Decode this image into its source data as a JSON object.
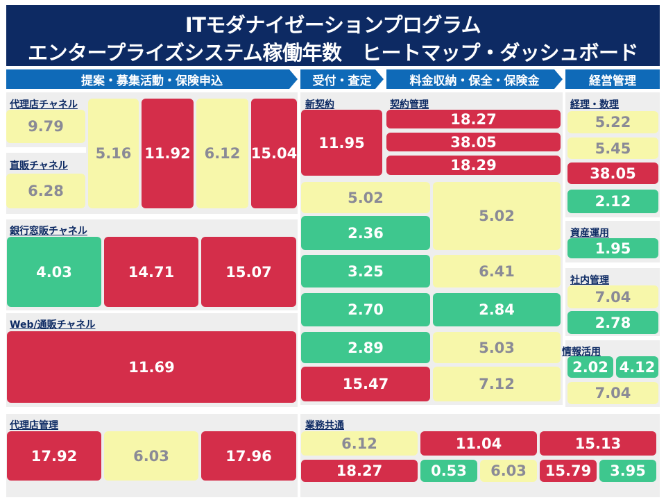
{
  "title": {
    "line1": "ITモダナイゼーションプログラム",
    "line2": "エンタープライズシステム稼働年数　ヒートマップ・ダッシュボード"
  },
  "colors": {
    "red": "#d42e4a",
    "yellow": "#f7f7aa",
    "green": "#3ec78e",
    "header_bg": "#0d2a63",
    "stage_bg": "#0f6ab8"
  },
  "stages": [
    {
      "label": "提案・募集活動・保険申込"
    },
    {
      "label": "受付・査定"
    },
    {
      "label": "料金収納・保全・保険金"
    },
    {
      "label": "経営管理"
    }
  ],
  "groups": {
    "dairiten_channel": {
      "label": "代理店チャネル"
    },
    "chokuhan_channel": {
      "label": "直販チャネル"
    },
    "ginko_channel": {
      "label": "銀行窓販チャネル"
    },
    "web_channel": {
      "label": "Web/通販チャネル"
    },
    "dairiten_kanri": {
      "label": "代理店管理"
    },
    "shinkeiyaku": {
      "label": "新契約"
    },
    "keiyaku_kanri": {
      "label": "契約管理"
    },
    "gyomu_kyotsu": {
      "label": "業務共通"
    },
    "keiri_suri": {
      "label": "経理・数理"
    },
    "shisan_unyo": {
      "label": "資産運用"
    },
    "shanai_kanri": {
      "label": "社内管理"
    },
    "joho_katsuyo": {
      "label": "情報活用"
    }
  },
  "cells": [
    {
      "value": "9.79",
      "status": "yellow"
    },
    {
      "value": "6.28",
      "status": "yellow"
    },
    {
      "value": "5.16",
      "status": "yellow"
    },
    {
      "value": "11.92",
      "status": "red"
    },
    {
      "value": "6.12",
      "status": "yellow"
    },
    {
      "value": "15.04",
      "status": "red"
    },
    {
      "value": "4.03",
      "status": "green"
    },
    {
      "value": "14.71",
      "status": "red"
    },
    {
      "value": "15.07",
      "status": "red"
    },
    {
      "value": "11.69",
      "status": "red"
    },
    {
      "value": "17.92",
      "status": "red"
    },
    {
      "value": "6.03",
      "status": "yellow"
    },
    {
      "value": "17.96",
      "status": "red"
    },
    {
      "value": "11.95",
      "status": "red"
    },
    {
      "value": "18.27",
      "status": "red"
    },
    {
      "value": "38.05",
      "status": "red"
    },
    {
      "value": "18.29",
      "status": "red"
    },
    {
      "value": "5.02",
      "status": "yellow"
    },
    {
      "value": "5.02",
      "status": "yellow"
    },
    {
      "value": "2.36",
      "status": "green"
    },
    {
      "value": "3.25",
      "status": "green"
    },
    {
      "value": "6.41",
      "status": "yellow"
    },
    {
      "value": "2.70",
      "status": "green"
    },
    {
      "value": "2.84",
      "status": "green"
    },
    {
      "value": "2.89",
      "status": "green"
    },
    {
      "value": "5.03",
      "status": "yellow"
    },
    {
      "value": "15.47",
      "status": "red"
    },
    {
      "value": "7.12",
      "status": "yellow"
    },
    {
      "value": "6.12",
      "status": "yellow"
    },
    {
      "value": "11.04",
      "status": "red"
    },
    {
      "value": "15.13",
      "status": "red"
    },
    {
      "value": "18.27",
      "status": "red"
    },
    {
      "value": "0.53",
      "status": "green"
    },
    {
      "value": "6.03",
      "status": "yellow"
    },
    {
      "value": "15.79",
      "status": "red"
    },
    {
      "value": "3.95",
      "status": "green"
    },
    {
      "value": "5.22",
      "status": "yellow"
    },
    {
      "value": "5.45",
      "status": "yellow"
    },
    {
      "value": "38.05",
      "status": "red"
    },
    {
      "value": "2.12",
      "status": "green"
    },
    {
      "value": "1.95",
      "status": "green"
    },
    {
      "value": "7.04",
      "status": "yellow"
    },
    {
      "value": "2.78",
      "status": "green"
    },
    {
      "value": "2.02",
      "status": "green"
    },
    {
      "value": "4.12",
      "status": "green"
    },
    {
      "value": "7.04",
      "status": "yellow"
    }
  ]
}
